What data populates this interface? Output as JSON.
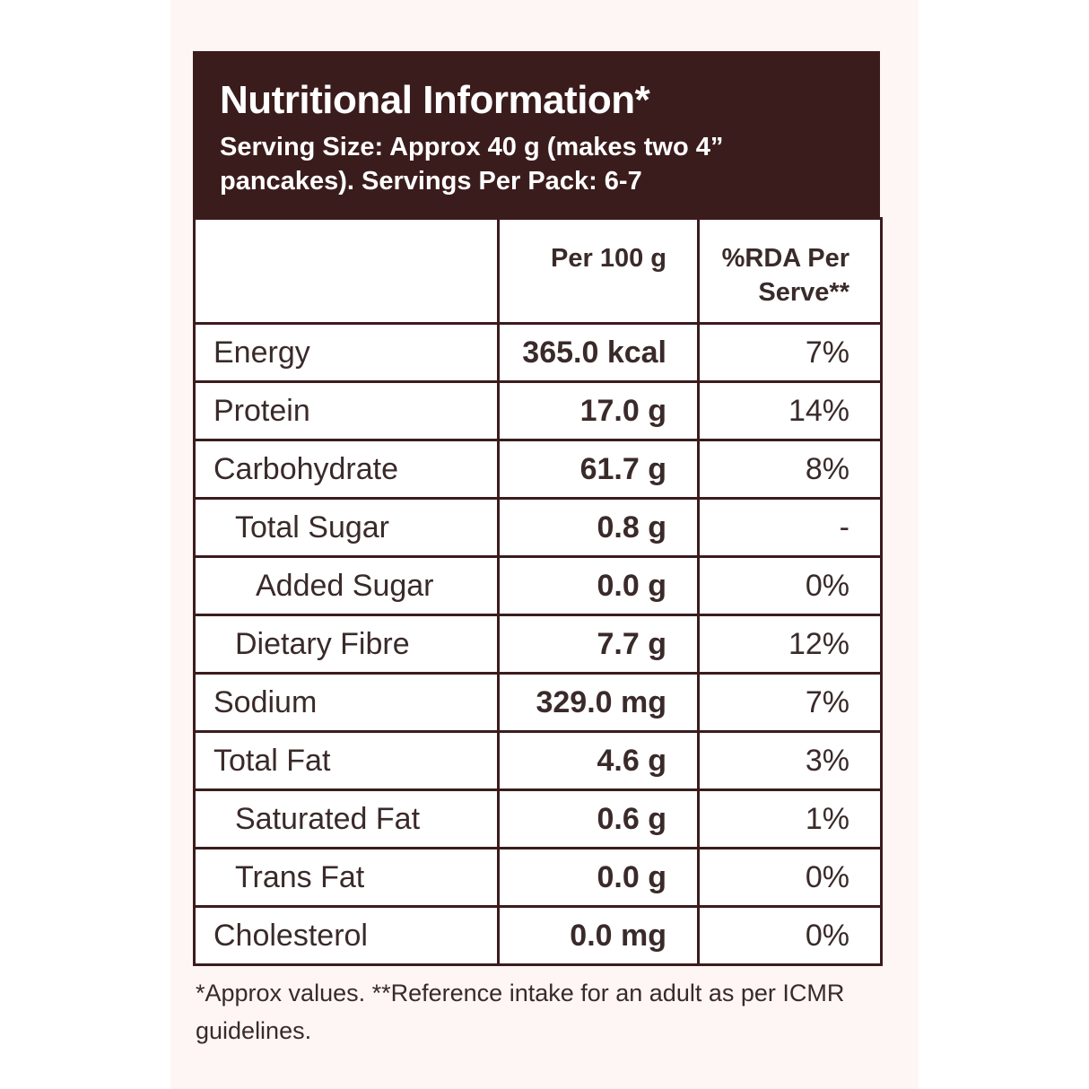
{
  "header": {
    "title": "Nutritional Information*",
    "subtitle": "Serving Size: Approx 40 g (makes two 4” pancakes). Servings Per Pack: 6-7"
  },
  "table": {
    "columns": [
      "",
      "Per 100 g",
      "%RDA Per Serve**"
    ],
    "rows": [
      {
        "name": "Energy",
        "per100": "365.0 kcal",
        "rda": "7%"
      },
      {
        "name": "Protein",
        "per100": "17.0 g",
        "rda": "14%"
      },
      {
        "name": "Carbohydrate",
        "per100": "61.7 g",
        "rda": "8%"
      },
      {
        "name": "Total Sugar",
        "per100": "0.8 g",
        "rda": "-"
      },
      {
        "name": "Added Sugar",
        "per100": "0.0 g",
        "rda": "0%"
      },
      {
        "name": "Dietary Fibre",
        "per100": "7.7 g",
        "rda": "12%"
      },
      {
        "name": "Sodium",
        "per100": "329.0 mg",
        "rda": "7%"
      },
      {
        "name": "Total Fat",
        "per100": "4.6 g",
        "rda": "3%"
      },
      {
        "name": "Saturated Fat",
        "per100": "0.6 g",
        "rda": "1%"
      },
      {
        "name": "Trans Fat",
        "per100": "0.0 g",
        "rda": "0%"
      },
      {
        "name": "Cholesterol",
        "per100": "0.0 mg",
        "rda": "0%"
      }
    ]
  },
  "footnote": "*Approx values. **Reference intake for an adult as per ICMR guidelines.",
  "colors": {
    "header_bg": "#3b1c1c",
    "panel_bg": "#fdf6f4",
    "text": "#3a2a2a"
  }
}
